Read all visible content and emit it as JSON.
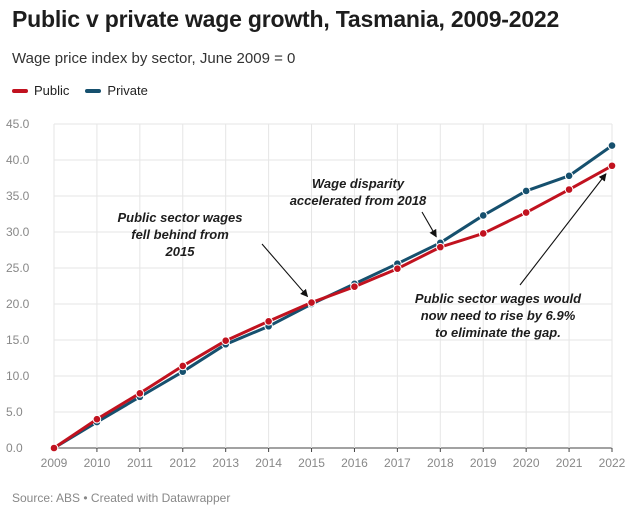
{
  "header": {
    "title": "Public v private wage growth, Tasmania, 2009-2022",
    "subtitle": "Wage price index by sector, June 2009 = 0"
  },
  "footer": {
    "source": "Source: ABS • Created with Datawrapper"
  },
  "colors": {
    "public": "#c1121f",
    "private": "#16506e",
    "grid": "#e6e6e6",
    "axis": "#888888"
  },
  "chart_data": {
    "type": "line",
    "title": "Public v private wage growth, Tasmania, 2009-2022",
    "subtitle": "Wage price index by sector, June 2009 = 0",
    "xlabel": "",
    "ylabel": "",
    "x": [
      "2009",
      "2010",
      "2011",
      "2012",
      "2013",
      "2014",
      "2015",
      "2016",
      "2017",
      "2018",
      "2019",
      "2020",
      "2021",
      "2022"
    ],
    "ylim": [
      0,
      45
    ],
    "yticks": [
      "0.0",
      "5.0",
      "10.0",
      "15.0",
      "20.0",
      "25.0",
      "30.0",
      "35.0",
      "40.0",
      "45.0"
    ],
    "grid": true,
    "legend_position": "top-left",
    "series": [
      {
        "name": "Public",
        "key": "public",
        "values": [
          0,
          4.0,
          7.6,
          11.4,
          14.9,
          17.6,
          20.2,
          22.4,
          24.9,
          27.9,
          29.8,
          32.7,
          35.9,
          39.2
        ]
      },
      {
        "name": "Private",
        "key": "private",
        "values": [
          0,
          3.6,
          7.1,
          10.6,
          14.4,
          16.9,
          20.0,
          22.8,
          25.6,
          28.5,
          32.3,
          35.7,
          37.8,
          42.0
        ]
      }
    ],
    "annotations": [
      {
        "id": "fell-behind",
        "lines": [
          "Public sector wages",
          "fell behind from",
          "2015"
        ],
        "target_year": "2015",
        "target_series": "public"
      },
      {
        "id": "disparity",
        "lines": [
          "Wage disparity",
          "accelerated from 2018"
        ],
        "target_year": "2018",
        "target_series": "private"
      },
      {
        "id": "gap",
        "lines": [
          "Public sector wages would",
          "now need to rise by 6.9%",
          "to eliminate the gap."
        ],
        "target_year": "2022",
        "target_series": "public"
      }
    ]
  }
}
